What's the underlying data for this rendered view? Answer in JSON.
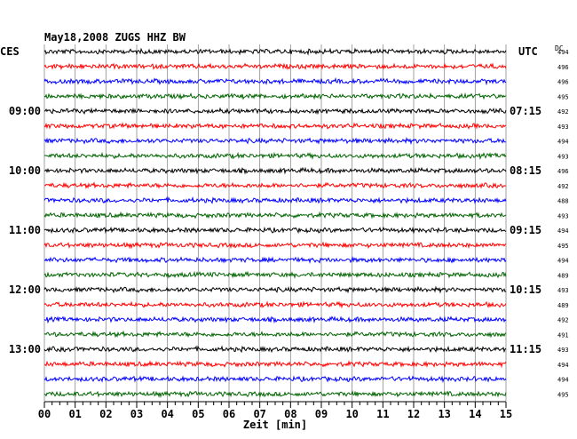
{
  "chart_data": {
    "type": "line",
    "title": "May18,2008   ZUGS HHZ BW",
    "left_zone_label": "CES",
    "right_zone_label": "UTC",
    "dc_header": "DC",
    "xlabel": "Zeit [min]",
    "x_ticks": [
      "00",
      "01",
      "02",
      "03",
      "04",
      "05",
      "06",
      "07",
      "08",
      "09",
      "10",
      "11",
      "12",
      "13",
      "14",
      "15"
    ],
    "xlim": [
      0,
      15
    ],
    "grid": true,
    "colors": {
      "black": "#000000",
      "red": "#ff0000",
      "blue": "#0000ff",
      "green": "#006400"
    },
    "color_cycle": [
      "black",
      "red",
      "blue",
      "green"
    ],
    "traces": [
      {
        "index": 0,
        "color": "black",
        "dc": "494"
      },
      {
        "index": 1,
        "color": "red",
        "dc": "496"
      },
      {
        "index": 2,
        "color": "blue",
        "dc": "496"
      },
      {
        "index": 3,
        "color": "green",
        "dc": "495"
      },
      {
        "index": 4,
        "color": "black",
        "dc": "492",
        "left_time": "09:00",
        "right_time": "07:15"
      },
      {
        "index": 5,
        "color": "red",
        "dc": "493"
      },
      {
        "index": 6,
        "color": "blue",
        "dc": "494"
      },
      {
        "index": 7,
        "color": "green",
        "dc": "493"
      },
      {
        "index": 8,
        "color": "black",
        "dc": "496",
        "left_time": "10:00",
        "right_time": "08:15"
      },
      {
        "index": 9,
        "color": "red",
        "dc": "492"
      },
      {
        "index": 10,
        "color": "blue",
        "dc": "488"
      },
      {
        "index": 11,
        "color": "green",
        "dc": "493"
      },
      {
        "index": 12,
        "color": "black",
        "dc": "494",
        "left_time": "11:00",
        "right_time": "09:15"
      },
      {
        "index": 13,
        "color": "red",
        "dc": "495"
      },
      {
        "index": 14,
        "color": "blue",
        "dc": "494"
      },
      {
        "index": 15,
        "color": "green",
        "dc": "489"
      },
      {
        "index": 16,
        "color": "black",
        "dc": "493",
        "left_time": "12:00",
        "right_time": "10:15"
      },
      {
        "index": 17,
        "color": "red",
        "dc": "489"
      },
      {
        "index": 18,
        "color": "blue",
        "dc": "492"
      },
      {
        "index": 19,
        "color": "green",
        "dc": "491"
      },
      {
        "index": 20,
        "color": "black",
        "dc": "493",
        "left_time": "13:00",
        "right_time": "11:15"
      },
      {
        "index": 21,
        "color": "red",
        "dc": "494"
      },
      {
        "index": 22,
        "color": "blue",
        "dc": "494"
      },
      {
        "index": 23,
        "color": "green",
        "dc": "495"
      }
    ]
  }
}
